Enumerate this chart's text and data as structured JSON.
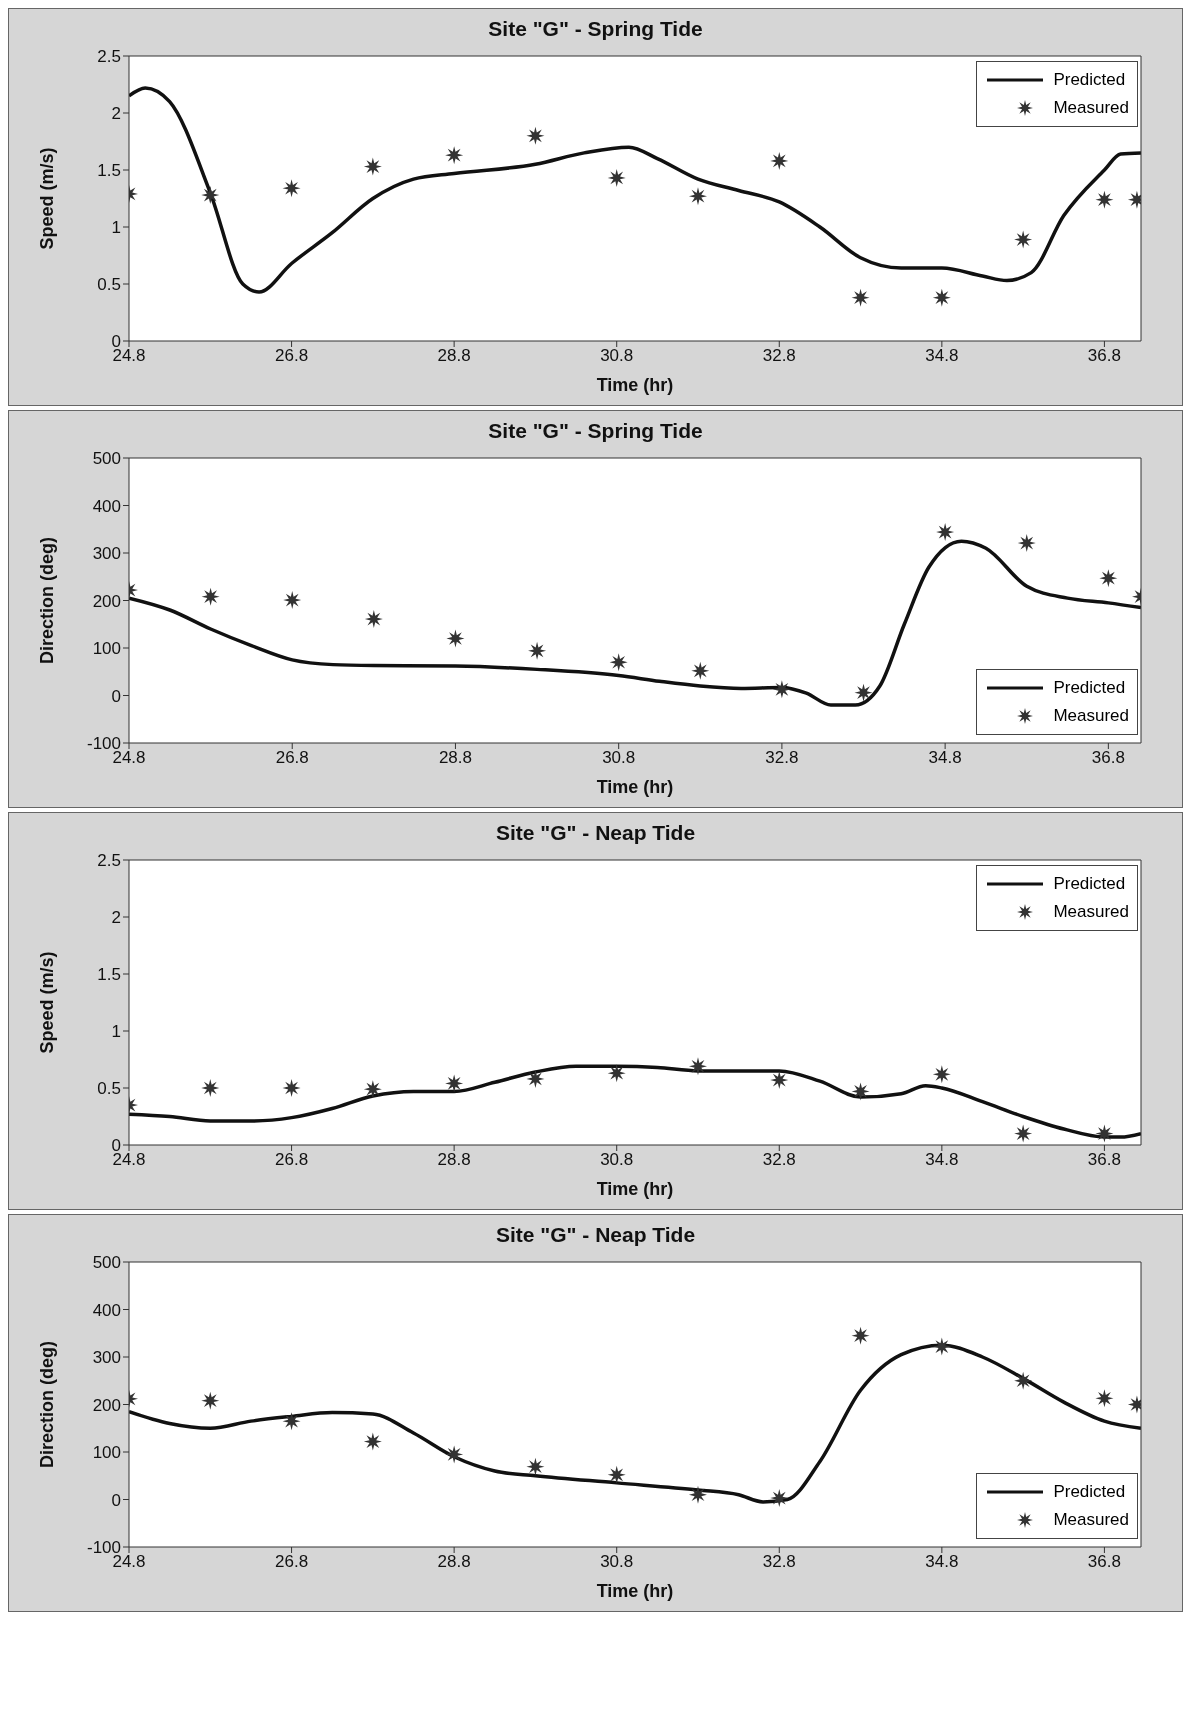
{
  "chart_data": [
    {
      "type": "line",
      "title": "Site \"G\" - Spring Tide",
      "xlabel": "Time (hr)",
      "ylabel": "Speed (m/s)",
      "xlim": [
        24.8,
        37.25
      ],
      "xticks": [
        24.8,
        26.8,
        28.8,
        30.8,
        32.8,
        34.8,
        36.8
      ],
      "ylim": [
        0,
        2.5
      ],
      "yticks": [
        0,
        0.5,
        1,
        1.5,
        2,
        2.5
      ],
      "legend": "top right",
      "series": [
        {
          "name": "Predicted",
          "type": "line",
          "color": "#111111",
          "x": [
            24.8,
            25.0,
            25.3,
            25.8,
            26.2,
            26.4,
            26.8,
            27.3,
            27.8,
            28.3,
            28.8,
            29.8,
            30.4,
            30.95,
            31.3,
            31.8,
            32.3,
            32.8,
            33.3,
            33.8,
            34.3,
            34.8,
            35.3,
            35.6,
            35.9,
            36.3,
            36.8,
            37.0,
            37.25
          ],
          "values": [
            2.15,
            2.22,
            2.1,
            1.3,
            0.5,
            0.43,
            0.68,
            0.95,
            1.25,
            1.42,
            1.47,
            1.55,
            1.65,
            1.7,
            1.6,
            1.42,
            1.32,
            1.22,
            1.0,
            0.73,
            0.64,
            0.64,
            0.57,
            0.53,
            0.6,
            1.1,
            1.5,
            1.64,
            1.65
          ]
        },
        {
          "name": "Measured",
          "type": "scatter",
          "marker": "star",
          "color": "#333333",
          "x": [
            24.8,
            25.8,
            26.8,
            27.8,
            28.8,
            29.8,
            30.8,
            31.8,
            32.8,
            33.8,
            34.8,
            35.8,
            36.8,
            37.2
          ],
          "values": [
            1.29,
            1.28,
            1.34,
            1.53,
            1.63,
            1.8,
            1.43,
            1.27,
            1.58,
            0.38,
            0.38,
            0.89,
            1.24,
            1.24
          ]
        }
      ]
    },
    {
      "type": "line",
      "title": "Site \"G\" - Spring Tide",
      "xlabel": "Time (hr)",
      "ylabel": "Direction (deg)",
      "xlim": [
        24.8,
        37.2
      ],
      "xticks": [
        24.8,
        26.8,
        28.8,
        30.8,
        32.8,
        34.8,
        36.8
      ],
      "ylim": [
        -100,
        500
      ],
      "yticks": [
        -100,
        0,
        100,
        200,
        300,
        400,
        500
      ],
      "legend": "bottom right",
      "series": [
        {
          "name": "Predicted",
          "type": "line",
          "color": "#111111",
          "x": [
            24.8,
            25.3,
            25.8,
            26.3,
            26.8,
            27.3,
            27.8,
            28.8,
            29.8,
            30.8,
            31.3,
            31.8,
            32.3,
            32.8,
            33.1,
            33.4,
            33.7,
            34.0,
            34.3,
            34.6,
            35.0,
            35.3,
            35.8,
            36.3,
            36.8,
            37.2
          ],
          "values": [
            205,
            180,
            140,
            105,
            75,
            65,
            63,
            62,
            55,
            42,
            30,
            20,
            15,
            17,
            5,
            -20,
            -20,
            20,
            150,
            270,
            325,
            310,
            230,
            205,
            195,
            185
          ]
        },
        {
          "name": "Measured",
          "type": "scatter",
          "marker": "star",
          "color": "#333333",
          "x": [
            24.8,
            25.8,
            26.8,
            27.8,
            28.8,
            29.8,
            30.8,
            31.8,
            32.8,
            33.8,
            34.8,
            35.8,
            36.8,
            37.2
          ],
          "values": [
            222,
            208,
            201,
            161,
            120,
            94,
            70,
            52,
            13,
            6,
            344,
            321,
            247,
            208
          ]
        }
      ]
    },
    {
      "type": "line",
      "title": "Site \"G\" - Neap Tide",
      "xlabel": "Time (hr)",
      "ylabel": "Speed (m/s)",
      "xlim": [
        24.8,
        37.25
      ],
      "xticks": [
        24.8,
        26.8,
        28.8,
        30.8,
        32.8,
        34.8,
        36.8
      ],
      "ylim": [
        0,
        2.5
      ],
      "yticks": [
        0,
        0.5,
        1,
        1.5,
        2,
        2.5
      ],
      "legend": "top right",
      "series": [
        {
          "name": "Predicted",
          "type": "line",
          "color": "#111111",
          "x": [
            24.8,
            25.3,
            25.8,
            26.3,
            26.8,
            27.3,
            27.8,
            28.3,
            28.8,
            29.3,
            29.8,
            30.3,
            30.8,
            31.3,
            31.8,
            32.3,
            32.8,
            33.3,
            33.8,
            34.3,
            34.6,
            34.8,
            35.3,
            35.8,
            36.3,
            36.8,
            37.0,
            37.25
          ],
          "values": [
            0.27,
            0.25,
            0.21,
            0.21,
            0.24,
            0.32,
            0.43,
            0.47,
            0.47,
            0.55,
            0.64,
            0.69,
            0.69,
            0.68,
            0.65,
            0.65,
            0.65,
            0.56,
            0.42,
            0.45,
            0.52,
            0.5,
            0.38,
            0.25,
            0.14,
            0.07,
            0.07,
            0.1
          ]
        },
        {
          "name": "Measured",
          "type": "scatter",
          "marker": "star",
          "color": "#333333",
          "x": [
            24.8,
            25.8,
            26.8,
            27.8,
            28.8,
            29.8,
            30.8,
            31.8,
            32.8,
            33.8,
            34.8,
            35.8,
            36.8
          ],
          "values": [
            0.35,
            0.5,
            0.5,
            0.49,
            0.54,
            0.58,
            0.63,
            0.69,
            0.57,
            0.47,
            0.62,
            0.1,
            0.1
          ]
        }
      ]
    },
    {
      "type": "line",
      "title": "Site \"G\" - Neap Tide",
      "xlabel": "Time (hr)",
      "ylabel": "Direction (deg)",
      "xlim": [
        24.8,
        37.25
      ],
      "xticks": [
        24.8,
        26.8,
        28.8,
        30.8,
        32.8,
        34.8,
        36.8
      ],
      "ylim": [
        -100,
        500
      ],
      "yticks": [
        -100,
        0,
        100,
        200,
        300,
        400,
        500
      ],
      "legend": "bottom right",
      "series": [
        {
          "name": "Predicted",
          "type": "line",
          "color": "#111111",
          "x": [
            24.8,
            25.3,
            25.8,
            26.3,
            26.8,
            27.3,
            27.8,
            28.3,
            28.8,
            29.3,
            29.8,
            30.8,
            31.8,
            32.3,
            32.6,
            32.9,
            33.3,
            33.8,
            34.3,
            34.8,
            35.3,
            35.8,
            36.3,
            36.8,
            37.25
          ],
          "values": [
            185,
            160,
            150,
            165,
            175,
            183,
            180,
            140,
            90,
            60,
            50,
            35,
            20,
            10,
            -5,
            0,
            80,
            230,
            305,
            325,
            300,
            255,
            205,
            165,
            150
          ]
        },
        {
          "name": "Measured",
          "type": "scatter",
          "marker": "star",
          "color": "#333333",
          "x": [
            24.8,
            25.8,
            26.8,
            27.8,
            28.8,
            29.8,
            30.8,
            31.8,
            32.8,
            33.8,
            34.8,
            35.8,
            36.8,
            37.2
          ],
          "values": [
            212,
            208,
            165,
            122,
            95,
            69,
            52,
            10,
            3,
            345,
            322,
            250,
            213,
            200
          ]
        }
      ]
    }
  ]
}
